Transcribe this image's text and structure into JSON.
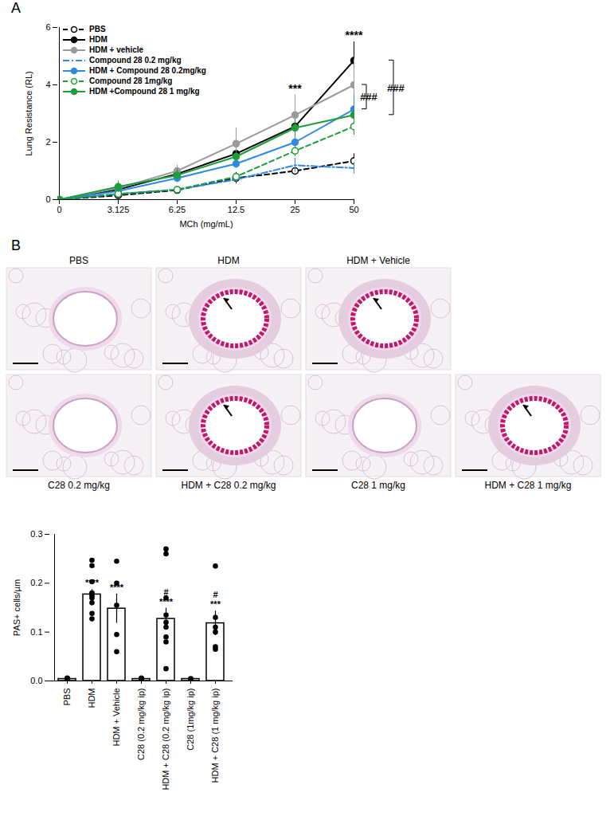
{
  "chart_data": [
    {
      "panel": "A",
      "type": "line",
      "categories": [
        "0",
        "3.125",
        "6.25",
        "12.5",
        "25",
        "50"
      ],
      "x_label": "MCh (mg/mL)",
      "y_label": "Lung Resistance (RL)",
      "ylim": [
        0,
        6
      ],
      "yticks": [
        0,
        2,
        4,
        6
      ],
      "legend": "top-left",
      "series": [
        {
          "name": "PBS",
          "color": "#000000",
          "line_style": "dashed",
          "marker": "circle-open",
          "values": [
            0,
            0.15,
            0.33,
            0.75,
            1.0,
            1.35
          ],
          "errors": [
            0,
            0.05,
            0.05,
            0.2,
            0.15,
            0.25
          ]
        },
        {
          "name": "HDM",
          "color": "#000000",
          "line_style": "solid",
          "marker": "circle",
          "values": [
            0,
            0.35,
            0.9,
            1.6,
            2.55,
            4.85
          ],
          "errors": [
            0,
            0.05,
            0.15,
            0.2,
            0.3,
            0.65
          ]
        },
        {
          "name": "HDM + vehicle",
          "color": "#9a9a9a",
          "line_style": "solid",
          "marker": "circle",
          "values": [
            0,
            0.4,
            1.0,
            1.95,
            2.95,
            4.0
          ],
          "errors": [
            0,
            0.1,
            0.2,
            0.55,
            0.7,
            0.9
          ]
        },
        {
          "name": "Compound 28 0.2 mg/kg",
          "color": "#2e8ae6",
          "line_style": "dashdot",
          "marker": "none",
          "values": [
            0,
            0.2,
            0.35,
            0.7,
            1.2,
            1.1
          ],
          "errors": [
            0,
            0.05,
            0.05,
            0.1,
            0.25,
            0.2
          ]
        },
        {
          "name": "HDM + Compound 28 0.2mg/kg",
          "color": "#2e8ae6",
          "line_style": "solid",
          "marker": "circle",
          "values": [
            0,
            0.3,
            0.75,
            1.25,
            2.0,
            3.15
          ],
          "errors": [
            0,
            0.1,
            0.15,
            0.15,
            0.2,
            0.5
          ]
        },
        {
          "name": "Compound 28 1mg/kg",
          "color": "#1e9e3a",
          "line_style": "dashed",
          "marker": "circle-open",
          "values": [
            0,
            0.2,
            0.35,
            0.8,
            1.7,
            2.55
          ],
          "errors": [
            0,
            0.05,
            0.05,
            0.1,
            0.2,
            0.3
          ]
        },
        {
          "name": "HDM +Compound 28 1 mg/kg",
          "color": "#1e9e3a",
          "line_style": "solid",
          "marker": "circle",
          "values": [
            0,
            0.45,
            0.85,
            1.5,
            2.5,
            2.95
          ],
          "errors": [
            0,
            0.2,
            0.2,
            0.2,
            0.3,
            0.3
          ]
        }
      ],
      "annotations": [
        {
          "text": "***",
          "category": "25"
        },
        {
          "text": "****",
          "category": "50"
        }
      ],
      "brackets": [
        {
          "text": "###",
          "from": "HDM + vehicle",
          "to": "HDM + Compound 28 0.2mg/kg"
        },
        {
          "text": "###",
          "from": "HDM",
          "to": "HDM +Compound 28 1 mg/kg"
        }
      ]
    },
    {
      "type": "bar",
      "categories": [
        "PBS",
        "HDM",
        "HDM + Vehicle",
        "C28 (0.2 mg/kg ip)",
        "HDM + C28 (0.2 mg/kg ip)",
        "C28 (1mg/kg ip)",
        "HDM + C28 (1 mg/kg ip)"
      ],
      "y_label": "PAS+ cells/µm",
      "ylim": [
        0,
        0.3
      ],
      "yticks": [
        {
          "value": 0,
          "label": "0.0"
        },
        0.1,
        0.2,
        0.3
      ],
      "values": [
        0.004,
        0.177,
        0.148,
        0.004,
        0.127,
        0.004,
        0.118
      ],
      "errors": [
        0.002,
        0.01,
        0.03,
        0.001,
        0.022,
        0.001,
        0.025
      ],
      "points": [
        [
          0.002,
          0.004,
          0.003,
          0.005,
          0.006
        ],
        [
          0.247,
          0.236,
          0.203,
          0.18,
          0.178,
          0.175,
          0.17,
          0.16,
          0.138,
          0.127
        ],
        [
          0.245,
          0.2,
          0.155,
          0.095,
          0.06
        ],
        [
          0.002,
          0.003,
          0.004,
          0.005,
          0.006,
          0.003
        ],
        [
          0.27,
          0.26,
          0.17,
          0.135,
          0.12,
          0.11,
          0.09,
          0.08,
          0.025
        ],
        [
          0.003,
          0.004,
          0.005
        ],
        [
          0.235,
          0.13,
          0.11,
          0.1,
          0.07,
          0.065
        ]
      ],
      "significance": [
        null,
        "****",
        "****",
        null,
        "****",
        null,
        "***"
      ],
      "significance_vs_vehicle": [
        null,
        null,
        null,
        null,
        "#",
        null,
        "#"
      ],
      "color": "#000000"
    }
  ],
  "micrographs": {
    "panel": "B",
    "top_row": [
      {
        "label": "PBS",
        "stained": false
      },
      {
        "label": "HDM",
        "stained": true
      },
      {
        "label": "HDM + Vehicle",
        "stained": true
      }
    ],
    "bottom_row": [
      {
        "label": "C28 0.2 mg/kg",
        "stained": false
      },
      {
        "label": "HDM + C28 0.2 mg/kg",
        "stained": true
      },
      {
        "label": "C28 1 mg/kg",
        "stained": false
      },
      {
        "label": "HDM + C28 1 mg/kg",
        "stained": true
      }
    ]
  }
}
